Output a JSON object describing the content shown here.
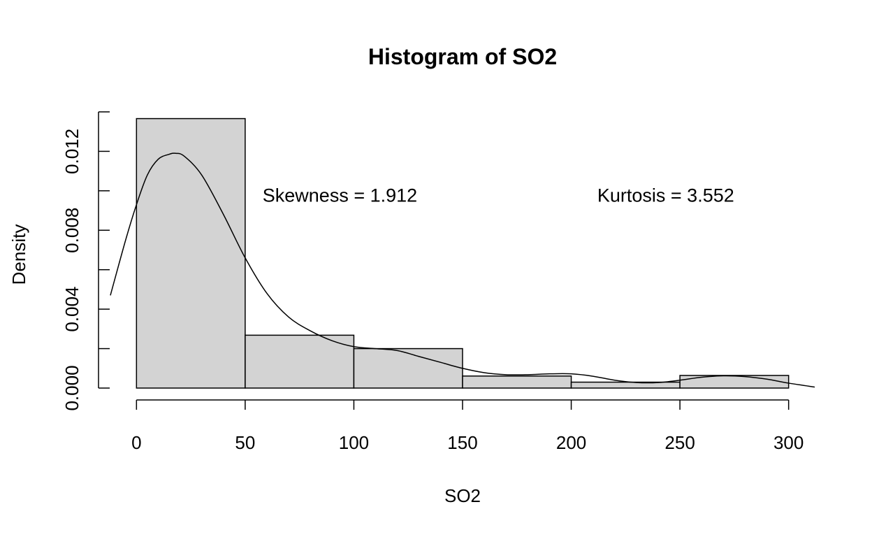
{
  "chart_data": {
    "type": "bar",
    "title": "Histogram of SO2",
    "xlabel": "SO2",
    "ylabel": "Density",
    "xlim": [
      -12,
      312
    ],
    "ylim": [
      0,
      0.014
    ],
    "x_ticks": [
      0,
      50,
      100,
      150,
      200,
      250,
      300
    ],
    "x_tick_labels": [
      "0",
      "50",
      "100",
      "150",
      "200",
      "250",
      "300"
    ],
    "y_ticks": [
      0.0,
      0.002,
      0.004,
      0.006,
      0.008,
      0.01,
      0.012,
      0.014
    ],
    "y_tick_labels": [
      "0.000",
      "",
      "0.004",
      "",
      "0.008",
      "",
      "0.012",
      ""
    ],
    "bins": [
      {
        "from": 0,
        "to": 50,
        "density": 0.01366
      },
      {
        "from": 50,
        "to": 100,
        "density": 0.00268
      },
      {
        "from": 100,
        "to": 150,
        "density": 0.002
      },
      {
        "from": 150,
        "to": 200,
        "density": 0.00061
      },
      {
        "from": 200,
        "to": 250,
        "density": 0.0003
      },
      {
        "from": 250,
        "to": 300,
        "density": 0.00064
      }
    ],
    "bar_color": "#d3d3d3",
    "density_curve": {
      "x": [
        -12,
        -5,
        0,
        5,
        10,
        15,
        18,
        22,
        30,
        40,
        50,
        60,
        70,
        80,
        90,
        100,
        110,
        120,
        130,
        140,
        150,
        160,
        170,
        180,
        190,
        200,
        210,
        220,
        230,
        240,
        250,
        260,
        270,
        280,
        290,
        300,
        312
      ],
      "y": [
        0.0047,
        0.0075,
        0.0093,
        0.0108,
        0.0116,
        0.01185,
        0.0119,
        0.01175,
        0.0108,
        0.0088,
        0.0066,
        0.0048,
        0.0036,
        0.0029,
        0.0024,
        0.0021,
        0.002,
        0.0019,
        0.0016,
        0.0013,
        0.001,
        0.00078,
        0.00068,
        0.00068,
        0.00072,
        0.00072,
        0.0006,
        0.0004,
        0.00028,
        0.00028,
        0.0004,
        0.00055,
        0.00062,
        0.00058,
        0.00045,
        0.00025,
        5e-05
      ]
    },
    "annotations": [
      {
        "text": "Skewness = 1.912",
        "x": 58,
        "y": 0.0098
      },
      {
        "text": "Kurtosis = 3.552",
        "x": 212,
        "y": 0.0098
      }
    ]
  }
}
